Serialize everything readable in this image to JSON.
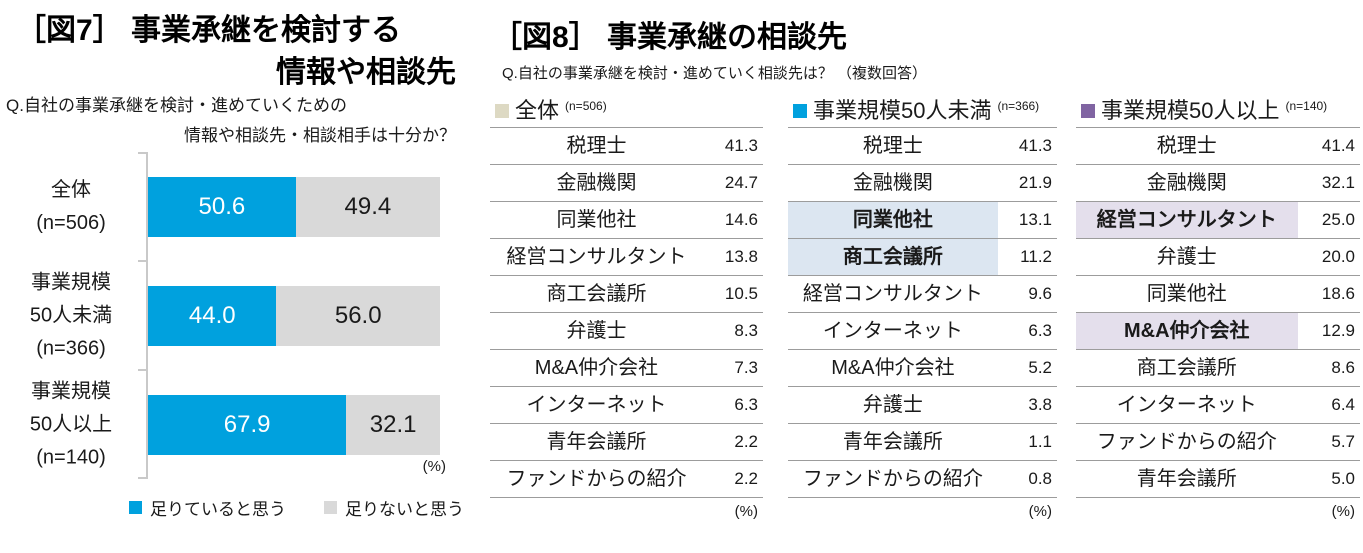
{
  "colors": {
    "blue": "#00A1DE",
    "gray": "#D9D9D9",
    "tan": "#DDD9C3",
    "purple": "#8064A2",
    "highlight_blue": "#DCE6F1",
    "highlight_purple": "#E4DFEC",
    "rule": "#9c9c9c",
    "axis": "#c9c9c9"
  },
  "fig7": {
    "title_line1": "［図7］ 事業承継を検討する",
    "title_line2": "情報や相談先",
    "question_line1": "Q.自社の事業承継を検討・進めていくための",
    "question_line2": "情報や相談先・相談相手は十分か？",
    "unit": "(%)"
  },
  "fig8": {
    "title": "［図8］ 事業承継の相談先",
    "question": "Q.自社の事業承継を検討・進めていく相談先は？ （複数回答）",
    "unit": "(%)"
  },
  "chart_data": [
    {
      "type": "bar",
      "subtype": "horizontal-stacked",
      "title": "［図7］事業承継を検討する情報や相談先",
      "question": "Q.自社の事業承継を検討・進めていくための情報や相談先・相談相手は十分か？",
      "categories": [
        "全体 (n=506)",
        "事業規模50人未満 (n=366)",
        "事業規模50人以上 (n=140)"
      ],
      "category_lines": [
        [
          "全体",
          "(n=506)"
        ],
        [
          "事業規模",
          "50人未満",
          "(n=366)"
        ],
        [
          "事業規模",
          "50人以上",
          "(n=140)"
        ]
      ],
      "series": [
        {
          "name": "足りていると思う",
          "color": "#00A1DE",
          "values": [
            50.6,
            44.0,
            67.9
          ]
        },
        {
          "name": "足りないと思う",
          "color": "#D9D9D9",
          "values": [
            49.4,
            56.0,
            32.1
          ]
        }
      ],
      "xlim": [
        0,
        100
      ],
      "unit": "%",
      "legend_position": "bottom"
    },
    {
      "type": "table",
      "title": "［図8］事業承継の相談先",
      "question": "Q.自社の事業承継を検討・進めていく相談先は？（複数回答）",
      "unit": "%",
      "tables": [
        {
          "name": "全体",
          "n_label": "(n=506)",
          "swatch_color": "#DDD9C3",
          "highlight_color": "#DCE6F1",
          "rows": [
            {
              "label": "税理士",
              "value": 41.3,
              "highlight": false
            },
            {
              "label": "金融機関",
              "value": 24.7,
              "highlight": false
            },
            {
              "label": "同業他社",
              "value": 14.6,
              "highlight": false
            },
            {
              "label": "経営コンサルタント",
              "value": 13.8,
              "highlight": false
            },
            {
              "label": "商工会議所",
              "value": 10.5,
              "highlight": false
            },
            {
              "label": "弁護士",
              "value": 8.3,
              "highlight": false
            },
            {
              "label": "M&A仲介会社",
              "value": 7.3,
              "highlight": false
            },
            {
              "label": "インターネット",
              "value": 6.3,
              "highlight": false
            },
            {
              "label": "青年会議所",
              "value": 2.2,
              "highlight": false
            },
            {
              "label": "ファンドからの紹介",
              "value": 2.2,
              "highlight": false
            }
          ]
        },
        {
          "name": "事業規模50人未満",
          "n_label": "(n=366)",
          "swatch_color": "#00A1DE",
          "highlight_color": "#DCE6F1",
          "rows": [
            {
              "label": "税理士",
              "value": 41.3,
              "highlight": false
            },
            {
              "label": "金融機関",
              "value": 21.9,
              "highlight": false
            },
            {
              "label": "同業他社",
              "value": 13.1,
              "highlight": true
            },
            {
              "label": "商工会議所",
              "value": 11.2,
              "highlight": true
            },
            {
              "label": "経営コンサルタント",
              "value": 9.6,
              "highlight": false
            },
            {
              "label": "インターネット",
              "value": 6.3,
              "highlight": false
            },
            {
              "label": "M&A仲介会社",
              "value": 5.2,
              "highlight": false
            },
            {
              "label": "弁護士",
              "value": 3.8,
              "highlight": false
            },
            {
              "label": "青年会議所",
              "value": 1.1,
              "highlight": false
            },
            {
              "label": "ファンドからの紹介",
              "value": 0.8,
              "highlight": false
            }
          ]
        },
        {
          "name": "事業規模50人以上",
          "n_label": "(n=140)",
          "swatch_color": "#8064A2",
          "highlight_color": "#E4DFEC",
          "rows": [
            {
              "label": "税理士",
              "value": 41.4,
              "highlight": false
            },
            {
              "label": "金融機関",
              "value": 32.1,
              "highlight": false
            },
            {
              "label": "経営コンサルタント",
              "value": 25.0,
              "highlight": true
            },
            {
              "label": "弁護士",
              "value": 20.0,
              "highlight": false
            },
            {
              "label": "同業他社",
              "value": 18.6,
              "highlight": false
            },
            {
              "label": "M&A仲介会社",
              "value": 12.9,
              "highlight": true
            },
            {
              "label": "商工会議所",
              "value": 8.6,
              "highlight": false
            },
            {
              "label": "インターネット",
              "value": 6.4,
              "highlight": false
            },
            {
              "label": "ファンドからの紹介",
              "value": 5.7,
              "highlight": false
            },
            {
              "label": "青年会議所",
              "value": 5.0,
              "highlight": false
            }
          ]
        }
      ]
    }
  ]
}
